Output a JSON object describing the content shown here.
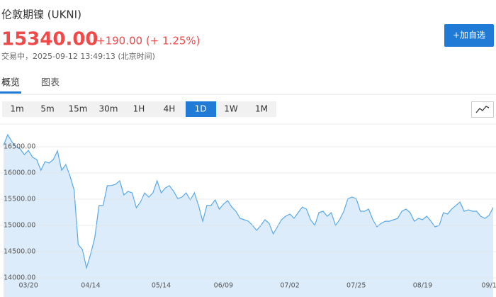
{
  "header": {
    "title": "伦敦期镍 (UKNI)",
    "price": "15340.00",
    "change": "+190.00 (+ 1.25%)",
    "status": "交易中，2025-09-12 13:49:13 (北京时间)",
    "button": "+加自选"
  },
  "tabs": [
    "概览",
    "图表"
  ],
  "intervals": [
    "1m",
    "5m",
    "15m",
    "30m",
    "1H",
    "4H",
    "1D",
    "1W",
    "1M"
  ],
  "chart_data": {
    "type": "area",
    "color": "#5aa9e6",
    "fill": "#dcecfb",
    "grid": true,
    "ylim": [
      14000,
      16932
    ],
    "yticks": [
      {
        "value": 14000,
        "label": "14000.00"
      },
      {
        "value": 14500,
        "label": "14500.00"
      },
      {
        "value": 15000,
        "label": "15000.00"
      },
      {
        "value": 15500,
        "label": "15500.00"
      },
      {
        "value": 16000,
        "label": "16000.00"
      },
      {
        "value": 16500,
        "label": "16500.00"
      }
    ],
    "categories": [
      null,
      null,
      null,
      null,
      null,
      null,
      "03/20",
      null,
      null,
      null,
      null,
      null,
      null,
      null,
      null,
      null,
      null,
      null,
      null,
      null,
      null,
      "04/14",
      null,
      null,
      null,
      null,
      null,
      null,
      null,
      null,
      null,
      null,
      null,
      null,
      null,
      null,
      null,
      null,
      "05/14",
      null,
      null,
      null,
      null,
      null,
      null,
      null,
      null,
      null,
      null,
      null,
      null,
      null,
      null,
      "06/09",
      null,
      null,
      null,
      null,
      null,
      null,
      null,
      null,
      null,
      null,
      null,
      null,
      null,
      null,
      null,
      "07/02",
      null,
      null,
      null,
      null,
      null,
      null,
      null,
      null,
      null,
      null,
      null,
      null,
      null,
      null,
      null,
      "07/25",
      null,
      null,
      null,
      null,
      null,
      null,
      null,
      null,
      null,
      null,
      null,
      null,
      null,
      null,
      null,
      "08/19",
      null,
      null,
      null,
      null,
      null,
      null,
      null,
      null,
      null,
      null,
      null,
      null,
      null,
      null,
      null,
      "09/1",
      null
    ],
    "values": [
      16527,
      16730,
      16595,
      16500,
      16460,
      16350,
      16430,
      16300,
      16255,
      16050,
      16215,
      16190,
      16255,
      16420,
      16050,
      16160,
      15945,
      15675,
      14635,
      14540,
      14190,
      14460,
      14770,
      15380,
      15380,
      15756,
      15760,
      15783,
      15850,
      15580,
      15650,
      15620,
      15338,
      15445,
      15620,
      15540,
      15620,
      15850,
      15620,
      15715,
      15756,
      15650,
      15510,
      15540,
      15620,
      15486,
      15620,
      15380,
      15080,
      15380,
      15380,
      15486,
      15310,
      15405,
      15473,
      15350,
      15270,
      15135,
      15108,
      15080,
      15000,
      14905,
      15000,
      15108,
      15040,
      14838,
      14973,
      15108,
      15175,
      15216,
      15135,
      15243,
      15350,
      15310,
      15108,
      15000,
      15243,
      15270,
      15175,
      15243,
      15000,
      15108,
      15270,
      15510,
      15540,
      15510,
      15270,
      15270,
      15310,
      15108,
      14973,
      15040,
      15080,
      15080,
      15108,
      15135,
      15270,
      15310,
      15243,
      15080,
      15135,
      15108,
      15175,
      15080,
      14973,
      15000,
      15243,
      15216,
      15310,
      15380,
      15445,
      15270,
      15297,
      15270,
      15270,
      15175,
      15135,
      15189,
      15340
    ]
  }
}
